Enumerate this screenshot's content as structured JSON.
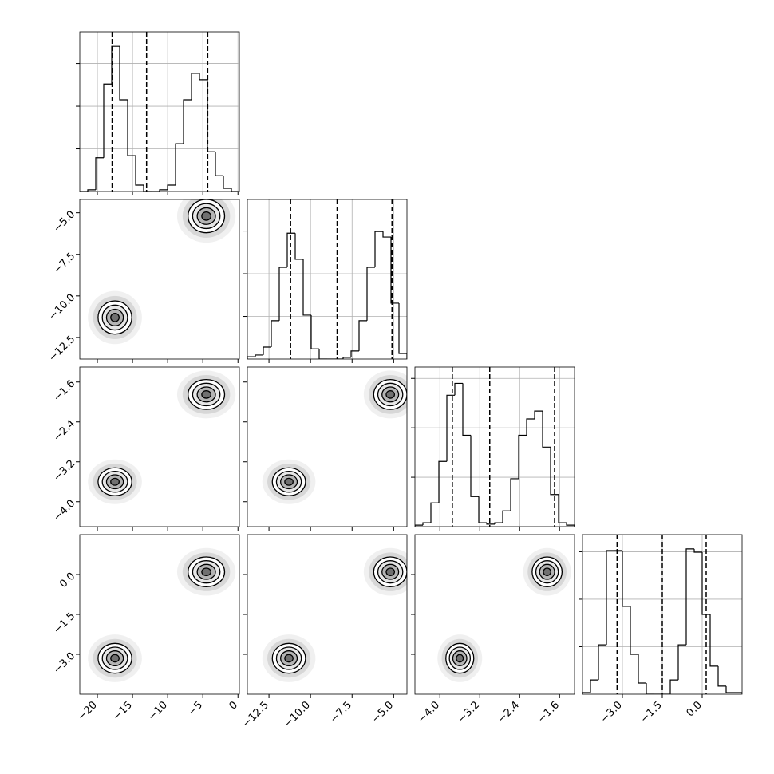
{
  "chart_data": {
    "type": "corner",
    "parameters": [
      {
        "lim": [
          -22.5,
          0.2
        ],
        "ticks": [
          {
            "value": -20,
            "label": "−20"
          },
          {
            "value": -15,
            "label": "−15"
          },
          {
            "value": -10,
            "label": "−10"
          },
          {
            "value": -5,
            "label": "−5"
          },
          0
        ]
      },
      {
        "lim": [
          -13.8,
          -4.2
        ],
        "ticks": [
          {
            "value": -12.5,
            "label": "−12.5"
          },
          {
            "value": -10,
            "label": "−10.0"
          },
          {
            "value": -7.5,
            "label": "−7.5"
          },
          {
            "value": -5,
            "label": "−5.0"
          }
        ]
      },
      {
        "lim": [
          -4.5,
          -1.3
        ],
        "ticks": [
          {
            "value": -4,
            "label": "−4.0"
          },
          {
            "value": -3.2,
            "label": "−3.2"
          },
          {
            "value": -2.4,
            "label": "−2.4"
          },
          {
            "value": -1.6,
            "label": "−1.6"
          }
        ]
      },
      {
        "lim": [
          -4.5,
          1.5
        ],
        "ticks": [
          {
            "value": -3,
            "label": "−3.0"
          },
          {
            "value": -1.5,
            "label": "−1.5"
          },
          {
            "value": 0,
            "label": "0.0"
          }
        ]
      }
    ],
    "histograms": [
      {
        "bins": [
          -22.5,
          -21.365,
          -20.23,
          -19.095,
          -17.96,
          -16.825,
          -15.69,
          -14.555,
          -13.42,
          -12.285,
          -11.15,
          -10.015,
          -8.88,
          -7.745,
          -6.61,
          -5.475,
          -4.34,
          -3.205,
          -2.07,
          -0.935,
          0.2
        ],
        "counts": [
          0,
          40,
          790,
          2520,
          3400,
          2150,
          840,
          150,
          0,
          0,
          40,
          150,
          1120,
          2150,
          2770,
          2620,
          930,
          370,
          75,
          0
        ],
        "ylim": [
          0,
          3740
        ],
        "yticks": [
          1000,
          2000,
          3000
        ],
        "quantiles": [
          -17.9,
          -13,
          -4.3
        ]
      },
      {
        "bins": [
          -13.8,
          -13.32,
          -12.84,
          -12.36,
          -11.88,
          -11.4,
          -10.92,
          -10.44,
          -9.96,
          -9.48,
          -9,
          -8.52,
          -8.04,
          -7.56,
          -7.08,
          -6.6,
          -6.12,
          -5.64,
          -5.16,
          -4.68,
          -4.2
        ],
        "counts": [
          55,
          95,
          280,
          900,
          2150,
          2950,
          2340,
          1030,
          240,
          0,
          0,
          0,
          40,
          190,
          900,
          2150,
          2990,
          2860,
          1310,
          130
        ],
        "ylim": [
          0,
          3740
        ],
        "yticks": [
          1000,
          2000,
          3000
        ],
        "quantiles": [
          -11.2,
          -8.4,
          -5.1
        ]
      },
      {
        "bins": [
          -4.5,
          -4.34,
          -4.18,
          -4.02,
          -3.86,
          -3.7,
          -3.54,
          -3.38,
          -3.22,
          -3.06,
          -2.9,
          -2.74,
          -2.58,
          -2.42,
          -2.26,
          -2.1,
          -1.94,
          -1.78,
          -1.62,
          -1.46,
          -1.3
        ],
        "counts": [
          30,
          80,
          480,
          1320,
          2660,
          2900,
          1850,
          610,
          80,
          50,
          80,
          320,
          970,
          1850,
          2180,
          2340,
          1610,
          650,
          80,
          30
        ],
        "ylim": [
          0,
          3230
        ],
        "yticks": [
          1000,
          2000,
          3000
        ],
        "quantiles": [
          -3.75,
          -3.0,
          -1.7
        ]
      },
      {
        "bins": [
          -4.5,
          -4.2,
          -3.9,
          -3.6,
          -3.3,
          -3,
          -2.7,
          -2.4,
          -2.1,
          -1.8,
          -1.5,
          -1.2,
          -0.9,
          -0.6,
          -0.3,
          0,
          0.3,
          0.6,
          0.9,
          1.2,
          1.5
        ],
        "counts": [
          35,
          300,
          1040,
          3025,
          3025,
          1850,
          840,
          235,
          0,
          0,
          0,
          300,
          1040,
          3060,
          2990,
          1680,
          590,
          170,
          35,
          35
        ],
        "ylim": [
          0,
          3360
        ],
        "yticks": [
          1000,
          2000,
          3000
        ],
        "quantiles": [
          -3.2,
          -1.5,
          0.15
        ]
      }
    ],
    "modes": [
      {
        "mean": [
          -17.5,
          -11.3,
          -3.6,
          -3.15
        ],
        "sd": [
          1.2,
          0.5,
          0.14,
          0.28
        ]
      },
      {
        "mean": [
          -4.5,
          -5.2,
          -1.85,
          0.1
        ],
        "sd": [
          1.3,
          0.5,
          0.15,
          0.28
        ]
      }
    ],
    "grid": true
  }
}
